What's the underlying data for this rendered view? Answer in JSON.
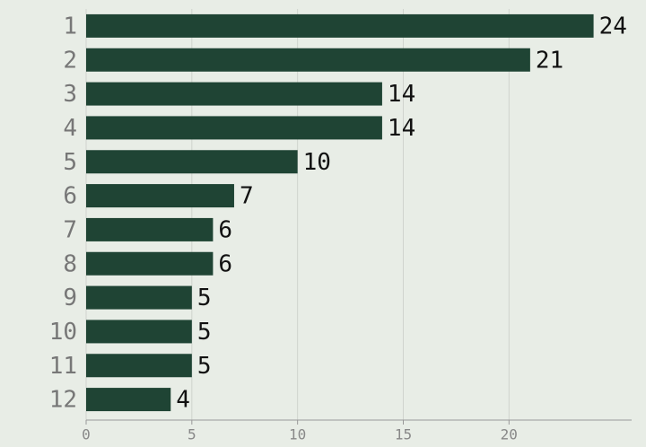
{
  "chart_data": {
    "type": "bar",
    "orientation": "horizontal",
    "categories": [
      "1",
      "2",
      "3",
      "4",
      "5",
      "6",
      "7",
      "8",
      "9",
      "10",
      "11",
      "12"
    ],
    "values": [
      24,
      21,
      14,
      14,
      10,
      7,
      6,
      6,
      5,
      5,
      5,
      4
    ],
    "color": "#1f4434",
    "xlim": [
      0,
      25.8
    ],
    "xticks": [
      0,
      5,
      10,
      15,
      20
    ],
    "grid": true
  }
}
